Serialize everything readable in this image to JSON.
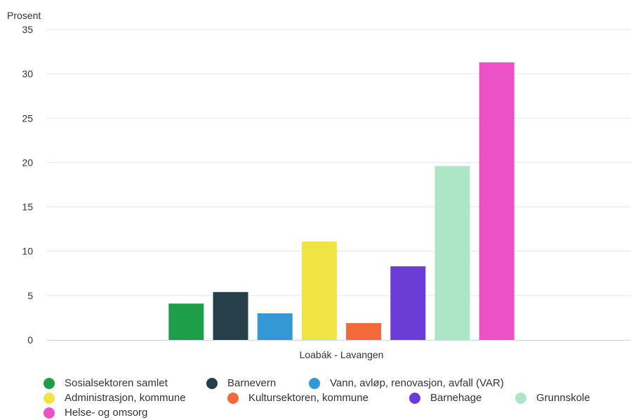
{
  "chart_data": {
    "type": "bar",
    "title": "",
    "ylabel": "Prosent",
    "xlabel": "",
    "category": "Loabák - Lavangen",
    "ylim": [
      0,
      35
    ],
    "yticks": [
      0,
      5,
      10,
      15,
      20,
      25,
      30,
      35
    ],
    "grid": true,
    "legend_position": "bottom",
    "series": [
      {
        "name": "Sosialsektoren samlet",
        "value": 4.1,
        "color": "#1f9e4a"
      },
      {
        "name": "Barnevern",
        "value": 5.4,
        "color": "#263f48"
      },
      {
        "name": "Vann, avløp, renovasjon, avfall (VAR)",
        "value": 3.0,
        "color": "#3497d6"
      },
      {
        "name": "Administrasjon, kommune",
        "value": 11.1,
        "color": "#f0e344"
      },
      {
        "name": "Kultursektoren, kommune",
        "value": 1.9,
        "color": "#f26a3a"
      },
      {
        "name": "Barnehage",
        "value": 8.3,
        "color": "#6c3cd6"
      },
      {
        "name": "Grunnskole",
        "value": 19.6,
        "color": "#ade6c5"
      },
      {
        "name": "Helse- og omsorg",
        "value": 31.3,
        "color": "#ec52c6"
      }
    ]
  }
}
